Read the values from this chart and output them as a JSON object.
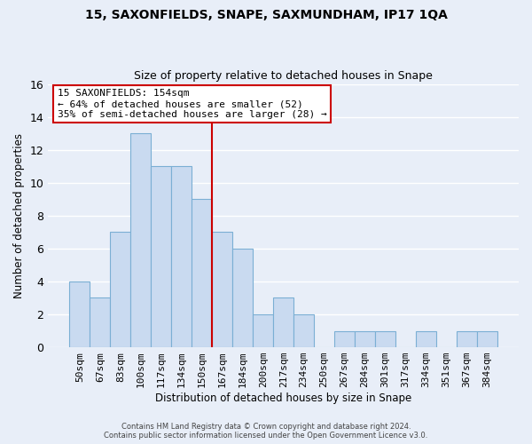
{
  "title": "15, SAXONFIELDS, SNAPE, SAXMUNDHAM, IP17 1QA",
  "subtitle": "Size of property relative to detached houses in Snape",
  "xlabel": "Distribution of detached houses by size in Snape",
  "ylabel": "Number of detached properties",
  "bar_labels": [
    "50sqm",
    "67sqm",
    "83sqm",
    "100sqm",
    "117sqm",
    "134sqm",
    "150sqm",
    "167sqm",
    "184sqm",
    "200sqm",
    "217sqm",
    "234sqm",
    "250sqm",
    "267sqm",
    "284sqm",
    "301sqm",
    "317sqm",
    "334sqm",
    "351sqm",
    "367sqm",
    "384sqm"
  ],
  "bar_values": [
    4,
    3,
    7,
    13,
    11,
    11,
    9,
    7,
    6,
    2,
    3,
    2,
    0,
    1,
    1,
    1,
    0,
    1,
    0,
    1,
    1
  ],
  "bar_color": "#c9daf0",
  "bar_edgecolor": "#7bafd4",
  "vline_color": "#cc0000",
  "vline_index": 6.5,
  "annotation_text": "15 SAXONFIELDS: 154sqm\n← 64% of detached houses are smaller (52)\n35% of semi-detached houses are larger (28) →",
  "annotation_boxcolor": "white",
  "annotation_edgecolor": "#cc0000",
  "ylim": [
    0,
    16
  ],
  "yticks": [
    0,
    2,
    4,
    6,
    8,
    10,
    12,
    14,
    16
  ],
  "footer_line1": "Contains HM Land Registry data © Crown copyright and database right 2024.",
  "footer_line2": "Contains public sector information licensed under the Open Government Licence v3.0.",
  "background_color": "#e8eef8",
  "grid_color": "#ffffff"
}
